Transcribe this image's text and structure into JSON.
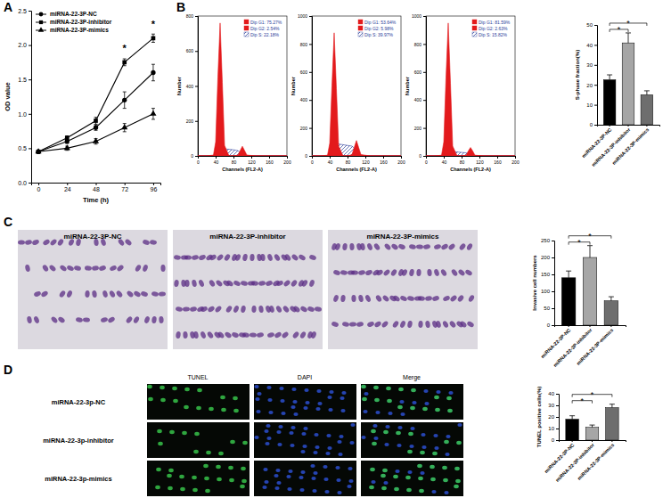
{
  "panel_letters": [
    "A",
    "B",
    "C",
    "D"
  ],
  "invasion_images": {
    "titles": [
      "miRNA-22-3P-NC",
      "miRNA-22-3P-inhibitor",
      "miRNA-22-3P-mimics"
    ]
  },
  "tunel_images": {
    "columns": [
      "TUNEL",
      "DAPI",
      "Merge"
    ],
    "rows": [
      "miRNA-22-3p-NC",
      "miRNA-22-3p-inhibitor",
      "miRNA-22-3p-mimics"
    ]
  },
  "chart_data": [
    {
      "type": "line",
      "x_label": "Time (h)",
      "y_label": "OD value",
      "x": [
        0,
        24,
        48,
        72,
        96
      ],
      "xlim": [
        -6,
        102
      ],
      "xticks": [
        0,
        24,
        48,
        72,
        96
      ],
      "ylim": [
        0,
        2.5
      ],
      "yticks": [
        {
          "value": 0,
          "label": "0.0"
        },
        {
          "value": 0.5,
          "label": "0.5"
        },
        {
          "value": 1,
          "label": "1.0"
        },
        {
          "value": 1.5,
          "label": "1.5"
        },
        {
          "value": 2,
          "label": "2.0"
        },
        {
          "value": 2.5,
          "label": "2.5"
        }
      ],
      "legend": "top-left",
      "series": [
        {
          "name": "miRNA-22-3P-NC",
          "color": "#000000",
          "marker": "circle",
          "values": [
            0.45,
            0.6,
            0.8,
            1.2,
            1.6
          ],
          "errors": [
            0.02,
            0.03,
            0.04,
            0.12,
            0.12
          ]
        },
        {
          "name": "miRNA-22-3P-inhibitor",
          "color": "#000000",
          "marker": "square",
          "values": [
            0.45,
            0.65,
            0.9,
            1.75,
            2.1
          ],
          "errors": [
            0.02,
            0.03,
            0.05,
            0.05,
            0.06
          ]
        },
        {
          "name": "miRNA-22-3P-mimics",
          "color": "#000000",
          "marker": "triangle",
          "values": [
            0.45,
            0.5,
            0.6,
            0.8,
            1.0
          ],
          "errors": [
            0.02,
            0.03,
            0.04,
            0.06,
            0.08
          ]
        }
      ],
      "annotations": [
        {
          "text": "*",
          "x": 72,
          "y": 1.9
        },
        {
          "text": "*",
          "x": 96,
          "y": 2.25
        }
      ]
    },
    {
      "type": "area",
      "x_label": "Channels (FL2-A)",
      "y_label": "Number",
      "x": [
        0,
        20,
        35,
        40,
        45,
        50,
        55,
        60,
        70,
        80,
        90,
        95,
        100,
        105,
        110,
        130,
        160,
        200
      ],
      "xlim": [
        0,
        200
      ],
      "xticks": [
        0,
        40,
        80,
        120,
        160,
        200
      ],
      "ylim": [
        0,
        800
      ],
      "yticks": [
        0,
        200,
        400,
        600,
        800
      ],
      "legend": "top-right",
      "series": [
        {
          "name": "Dip G1: 75.27%",
          "color": "#e31a1c",
          "values": [
            0,
            0,
            5,
            80,
            450,
            760,
            420,
            60,
            0,
            0,
            0,
            0,
            0,
            0,
            0,
            0,
            0,
            0
          ]
        },
        {
          "name": "Dip G2: 2.54%",
          "color": "#e31a1c",
          "values": [
            0,
            0,
            0,
            0,
            0,
            0,
            0,
            0,
            0,
            0,
            5,
            30,
            55,
            30,
            5,
            0,
            0,
            0
          ]
        },
        {
          "name": "Dip S: 22.18%",
          "color": "#2b3d9a",
          "line_style": "hatched",
          "values": [
            0,
            0,
            0,
            5,
            20,
            35,
            40,
            40,
            38,
            35,
            30,
            20,
            10,
            3,
            0,
            0,
            0,
            0
          ]
        }
      ]
    },
    {
      "type": "area",
      "x_label": "Channels (FL2-A)",
      "y_label": "Number",
      "x": [
        0,
        20,
        35,
        40,
        45,
        50,
        55,
        60,
        70,
        80,
        90,
        95,
        100,
        105,
        110,
        130,
        160,
        200
      ],
      "xlim": [
        0,
        200
      ],
      "xticks": [
        0,
        40,
        80,
        120,
        160,
        200
      ],
      "ylim": [
        0,
        1000
      ],
      "yticks": [
        0,
        200,
        400,
        600,
        800,
        1000
      ],
      "legend": "top-right",
      "series": [
        {
          "name": "Dip G1: 53.64%",
          "color": "#e31a1c",
          "values": [
            0,
            0,
            5,
            90,
            500,
            880,
            480,
            70,
            0,
            0,
            0,
            0,
            0,
            0,
            0,
            0,
            0,
            0
          ]
        },
        {
          "name": "Dip G2: 5.98%",
          "color": "#e31a1c",
          "values": [
            0,
            0,
            0,
            0,
            0,
            0,
            0,
            0,
            0,
            0,
            10,
            60,
            110,
            60,
            10,
            0,
            0,
            0
          ]
        },
        {
          "name": "Dip S: 39.97%",
          "color": "#2b3d9a",
          "line_style": "hatched",
          "values": [
            0,
            0,
            0,
            10,
            40,
            70,
            80,
            85,
            80,
            75,
            70,
            55,
            30,
            10,
            0,
            0,
            0,
            0
          ]
        }
      ]
    },
    {
      "type": "area",
      "x_label": "Channels (FL2-A)",
      "y_label": "Number",
      "x": [
        0,
        20,
        35,
        40,
        45,
        50,
        55,
        60,
        70,
        80,
        90,
        95,
        100,
        105,
        110,
        130,
        160,
        200
      ],
      "xlim": [
        0,
        200
      ],
      "xticks": [
        0,
        40,
        80,
        120,
        160,
        200
      ],
      "ylim": [
        0,
        1000
      ],
      "yticks": [
        0,
        200,
        400,
        600,
        800,
        1000
      ],
      "legend": "top-right",
      "series": [
        {
          "name": "Dip G1: 81.59%",
          "color": "#e31a1c",
          "values": [
            0,
            0,
            5,
            100,
            560,
            950,
            520,
            70,
            0,
            0,
            0,
            0,
            0,
            0,
            0,
            0,
            0,
            0
          ]
        },
        {
          "name": "Dip G2: 2.63%",
          "color": "#e31a1c",
          "values": [
            0,
            0,
            0,
            0,
            0,
            0,
            0,
            0,
            0,
            0,
            5,
            35,
            60,
            35,
            5,
            0,
            0,
            0
          ]
        },
        {
          "name": "Dip S: 15.82%",
          "color": "#2b3d9a",
          "line_style": "hatched",
          "values": [
            0,
            0,
            0,
            5,
            20,
            30,
            30,
            30,
            28,
            25,
            22,
            15,
            8,
            3,
            0,
            0,
            0,
            0
          ]
        }
      ]
    },
    {
      "type": "bar",
      "y_label": "S-phase fraction(%)",
      "categories": [
        "miRNA-22-3P-NC",
        "miRNA-22-3P-inhibitor",
        "miRNA-22-3P-mimics"
      ],
      "values": [
        22.5,
        41,
        15
      ],
      "errors": [
        2.5,
        5,
        2
      ],
      "colors": [
        "#000000",
        "#a6a6a6",
        "#6e6e6e"
      ],
      "ylim": [
        0,
        50
      ],
      "yticks": [
        0,
        10,
        20,
        30,
        40,
        50
      ],
      "annotations": [
        {
          "text": "*",
          "between": [
            0,
            1
          ]
        },
        {
          "text": "*",
          "between": [
            0,
            2
          ]
        }
      ]
    },
    {
      "type": "bar",
      "y_label": "Invasive cell numbers",
      "categories": [
        "miRNA-22-3P-NC",
        "miRNA-22-3P-inhibitor",
        "miRNA-22-3P-mimics"
      ],
      "values": [
        140,
        200,
        72
      ],
      "errors": [
        20,
        35,
        12
      ],
      "colors": [
        "#000000",
        "#a6a6a6",
        "#6e6e6e"
      ],
      "ylim": [
        0,
        250
      ],
      "yticks": [
        0,
        50,
        100,
        150,
        200,
        250
      ],
      "annotations": [
        {
          "text": "*",
          "between": [
            0,
            1
          ]
        },
        {
          "text": "*",
          "between": [
            0,
            2
          ]
        }
      ]
    },
    {
      "type": "bar",
      "y_label": "TUNEL positive cells(%)",
      "categories": [
        "miRNA-22-3P-NC",
        "miRNA-22-3P-inhibitor",
        "miRNA-22-3P-mimics"
      ],
      "values": [
        18,
        11,
        28
      ],
      "errors": [
        3,
        2,
        3
      ],
      "colors": [
        "#000000",
        "#a6a6a6",
        "#6e6e6e"
      ],
      "ylim": [
        0,
        40
      ],
      "yticks": [
        0,
        10,
        20,
        30,
        40
      ],
      "annotations": [
        {
          "text": "*",
          "between": [
            0,
            1
          ]
        },
        {
          "text": "*",
          "between": [
            0,
            2
          ]
        }
      ]
    }
  ]
}
